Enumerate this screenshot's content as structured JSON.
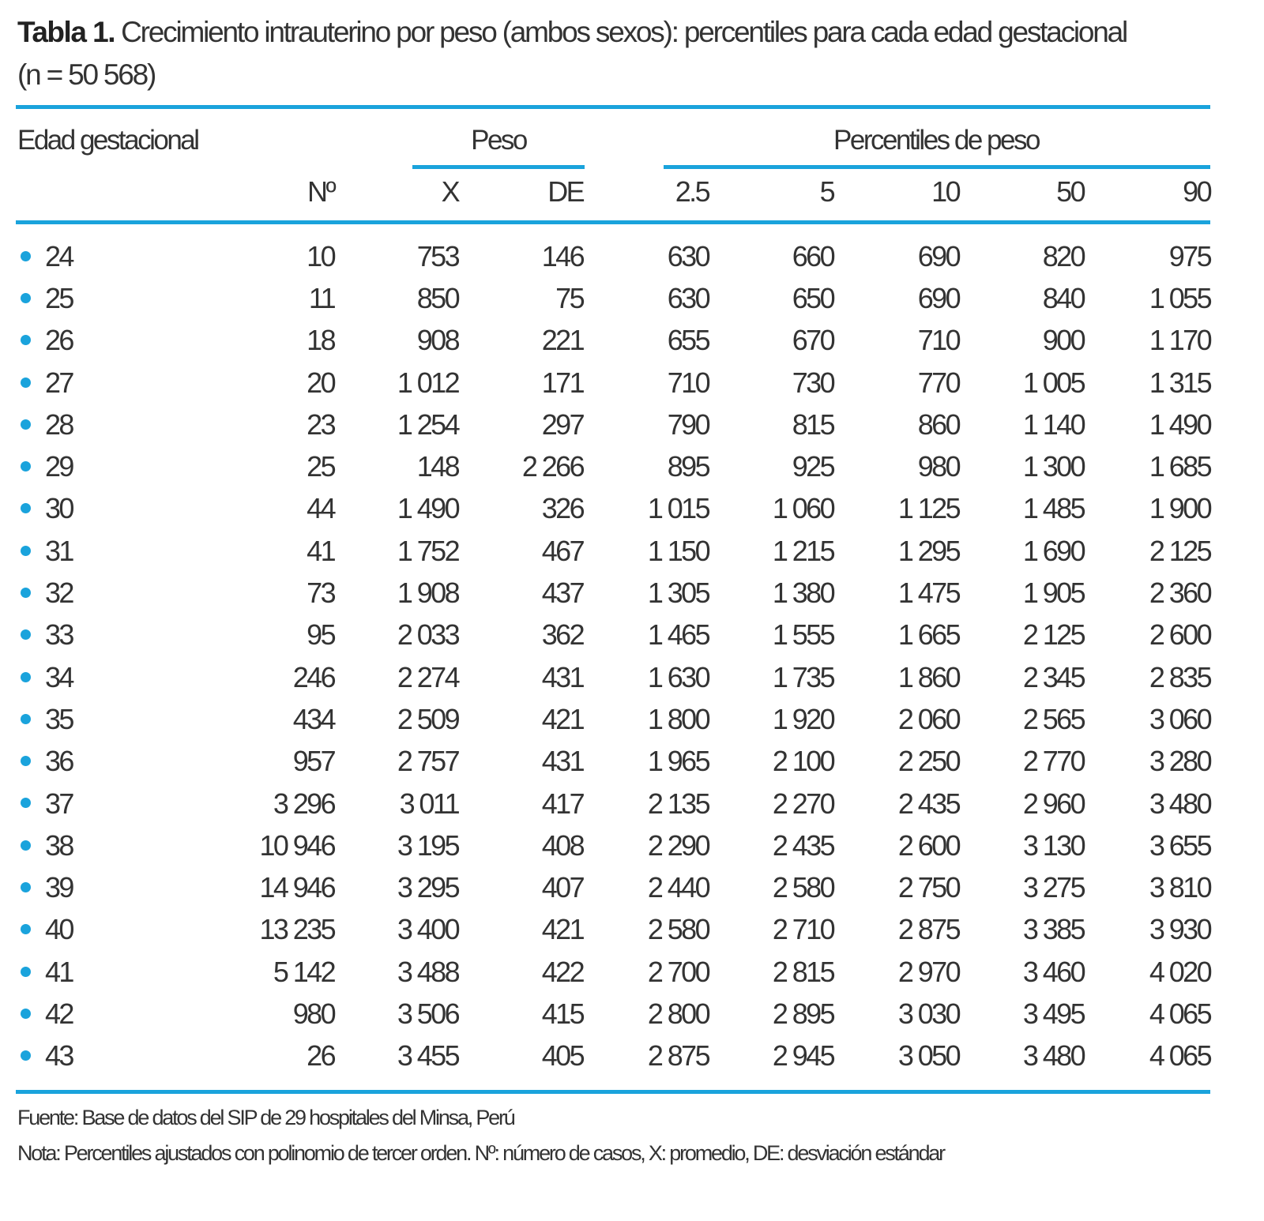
{
  "title": {
    "label": "Tabla 1.",
    "text": "Crecimiento intrauterino por peso (ambos sexos): percentiles para cada edad gestacional",
    "subtitle": "(n = 50 568)"
  },
  "accent_color": "#1aa3dc",
  "group_headers": {
    "edad": "Edad gestacional",
    "peso": "Peso",
    "percentiles": "Percentiles de peso"
  },
  "columns": [
    "",
    "Nº",
    "X",
    "DE",
    "2.5",
    "5",
    "10",
    "50",
    "90"
  ],
  "rows": [
    [
      "24",
      "10",
      "753",
      "146",
      "630",
      "660",
      "690",
      "820",
      "975"
    ],
    [
      "25",
      "11",
      "850",
      "75",
      "630",
      "650",
      "690",
      "840",
      "1 055"
    ],
    [
      "26",
      "18",
      "908",
      "221",
      "655",
      "670",
      "710",
      "900",
      "1 170"
    ],
    [
      "27",
      "20",
      "1 012",
      "171",
      "710",
      "730",
      "770",
      "1 005",
      "1 315"
    ],
    [
      "28",
      "23",
      "1 254",
      "297",
      "790",
      "815",
      "860",
      "1 140",
      "1 490"
    ],
    [
      "29",
      "25",
      "148",
      "2 266",
      "895",
      "925",
      "980",
      "1 300",
      "1 685"
    ],
    [
      "30",
      "44",
      "1 490",
      "326",
      "1 015",
      "1 060",
      "1 125",
      "1 485",
      "1 900"
    ],
    [
      "31",
      "41",
      "1 752",
      "467",
      "1 150",
      "1 215",
      "1 295",
      "1 690",
      "2 125"
    ],
    [
      "32",
      "73",
      "1 908",
      "437",
      "1 305",
      "1 380",
      "1 475",
      "1 905",
      "2 360"
    ],
    [
      "33",
      "95",
      "2 033",
      "362",
      "1 465",
      "1 555",
      "1 665",
      "2 125",
      "2 600"
    ],
    [
      "34",
      "246",
      "2 274",
      "431",
      "1 630",
      "1 735",
      "1 860",
      "2 345",
      "2 835"
    ],
    [
      "35",
      "434",
      "2 509",
      "421",
      "1 800",
      "1 920",
      "2 060",
      "2 565",
      "3 060"
    ],
    [
      "36",
      "957",
      "2 757",
      "431",
      "1 965",
      "2 100",
      "2 250",
      "2 770",
      "3 280"
    ],
    [
      "37",
      "3 296",
      "3 011",
      "417",
      "2 135",
      "2 270",
      "2 435",
      "2 960",
      "3 480"
    ],
    [
      "38",
      "10 946",
      "3 195",
      "408",
      "2 290",
      "2 435",
      "2 600",
      "3 130",
      "3 655"
    ],
    [
      "39",
      "14 946",
      "3 295",
      "407",
      "2 440",
      "2 580",
      "2 750",
      "3 275",
      "3 810"
    ],
    [
      "40",
      "13 235",
      "3 400",
      "421",
      "2 580",
      "2 710",
      "2 875",
      "3 385",
      "3 930"
    ],
    [
      "41",
      "5 142",
      "3 488",
      "422",
      "2 700",
      "2 815",
      "2 970",
      "3 460",
      "4 020"
    ],
    [
      "42",
      "980",
      "3 506",
      "415",
      "2 800",
      "2 895",
      "3 030",
      "3 495",
      "4 065"
    ],
    [
      "43",
      "26",
      "3 455",
      "405",
      "2 875",
      "2 945",
      "3 050",
      "3 480",
      "4 065"
    ]
  ],
  "footer": {
    "source": "Fuente: Base de datos del SIP de 29 hospitales del Minsa, Perú",
    "note": "Nota: Percentiles ajustados con polinomio de tercer orden. Nº: número de casos, X: promedio, DE: desviación estándar"
  }
}
